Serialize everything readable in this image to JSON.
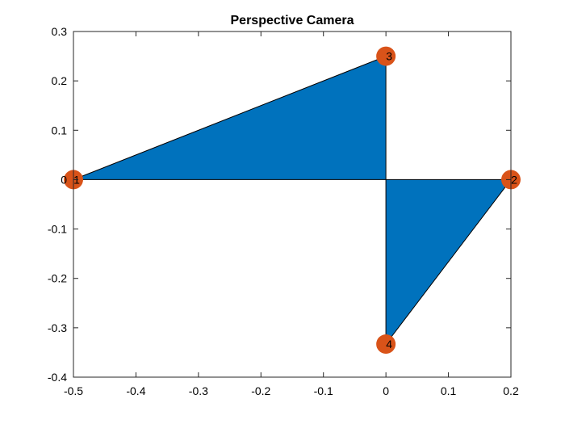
{
  "chart_data": {
    "type": "scatter",
    "title": "Perspective Camera",
    "xlabel": "",
    "ylabel": "",
    "xlim": [
      -0.5,
      0.2
    ],
    "ylim": [
      -0.4,
      0.3
    ],
    "xticks": [
      -0.5,
      -0.4,
      -0.3,
      -0.2,
      -0.1,
      0,
      0.1,
      0.2
    ],
    "xtick_labels": [
      "-0.5",
      "-0.4",
      "-0.3",
      "-0.2",
      "-0.1",
      "0",
      "0.1",
      "0.2"
    ],
    "yticks": [
      -0.4,
      -0.3,
      -0.2,
      -0.1,
      0,
      0.1,
      0.2,
      0.3
    ],
    "ytick_labels": [
      "-0.4",
      "-0.3",
      "-0.2",
      "-0.1",
      "0",
      "0.1",
      "0.2",
      "0.3"
    ],
    "grid": false,
    "points": [
      {
        "label": "1",
        "x": -0.5,
        "y": 0
      },
      {
        "label": "2",
        "x": 0.2,
        "y": 0
      },
      {
        "label": "3",
        "x": 0,
        "y": 0.25
      },
      {
        "label": "4",
        "x": 0,
        "y": -0.333
      }
    ],
    "triangles": [
      [
        -0.5,
        0,
        0,
        0.25,
        0,
        0
      ],
      [
        0,
        0,
        0.2,
        0,
        0,
        -0.333
      ]
    ],
    "fill_color": "#0072BD",
    "marker_color": "#D95319"
  }
}
